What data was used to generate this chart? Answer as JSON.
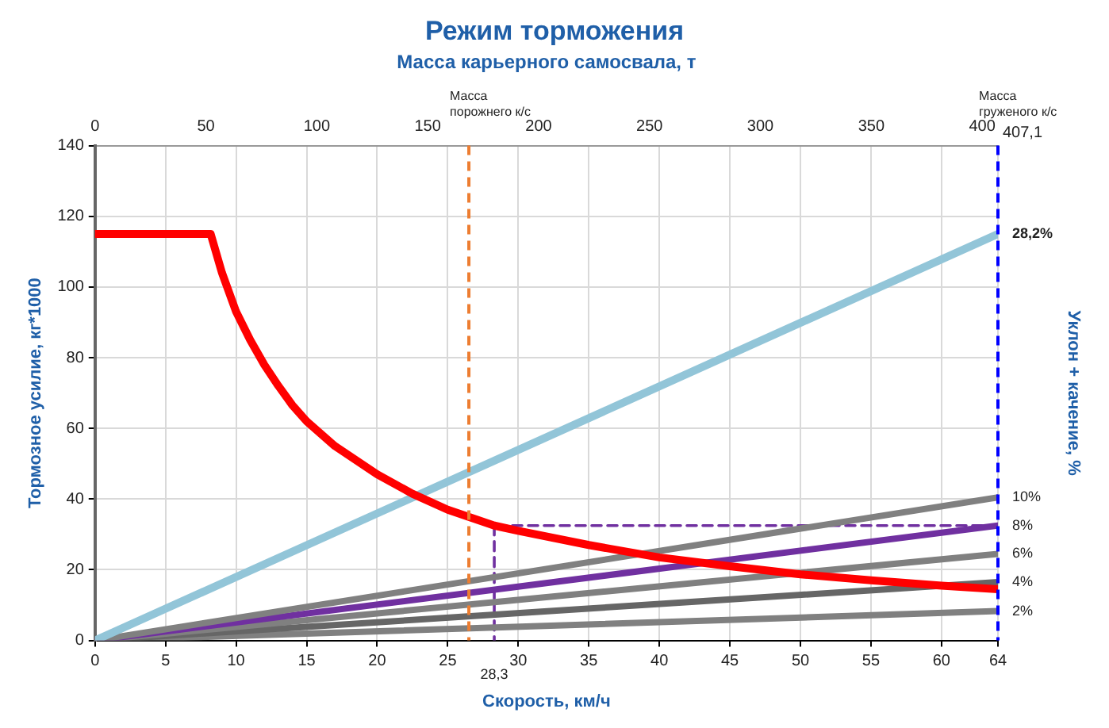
{
  "chart_data": {
    "type": "line",
    "title": "Режим торможения",
    "x2label": "Масса карьерного самосвала, т",
    "xlabel": "Скорость, км/ч",
    "ylabel": "Тормозное усилие, кг*1000",
    "y2label": "Уклон + качение, %",
    "xlim": [
      0,
      64
    ],
    "xticks": [
      0,
      5,
      10,
      15,
      20,
      25,
      30,
      35,
      40,
      45,
      50,
      55,
      60,
      64
    ],
    "x2lim": [
      0,
      407.1
    ],
    "x2ticks": [
      0,
      50,
      100,
      150,
      200,
      250,
      300,
      350,
      400
    ],
    "ylim": [
      0,
      140
    ],
    "yticks": [
      0,
      20,
      40,
      60,
      80,
      100,
      120,
      140
    ],
    "grid": true,
    "legend": false,
    "marker": "none",
    "series": [
      {
        "color": "#ff0000",
        "x": [
          0,
          8.2,
          9,
          10,
          11,
          12,
          13,
          14,
          15,
          17,
          20,
          22.5,
          25,
          28.3,
          30,
          35,
          40,
          45,
          50,
          55,
          60,
          64
        ],
        "values": [
          115,
          115,
          104,
          93,
          85,
          78,
          72,
          66.5,
          62,
          55,
          47,
          41.5,
          37,
          32.5,
          31,
          27,
          23.5,
          21,
          18.7,
          17,
          15.5,
          14.5
        ]
      },
      {
        "name": "28,2%",
        "color": "#92c5d8",
        "x": [
          0,
          64
        ],
        "values": [
          0,
          115
        ]
      },
      {
        "name": "10%",
        "color": "#808080",
        "x": [
          0,
          64
        ],
        "values": [
          0,
          40.5
        ]
      },
      {
        "name": "8%",
        "color": "#7030a0",
        "x": [
          0,
          64
        ],
        "values": [
          0,
          32.5
        ]
      },
      {
        "name": "6%",
        "color": "#808080",
        "x": [
          0,
          64
        ],
        "values": [
          0,
          24.5
        ]
      },
      {
        "name": "4%",
        "color": "#666666",
        "x": [
          0,
          64
        ],
        "values": [
          0,
          16.5
        ]
      },
      {
        "name": "2%",
        "color": "#808080",
        "x": [
          0,
          64
        ],
        "values": [
          0,
          8.3
        ]
      },
      {
        "color": "#7030a0",
        "line_style": "dashed",
        "x": [
          64,
          28.3
        ],
        "values": [
          32.5,
          32.5
        ]
      },
      {
        "color": "#7030a0",
        "line_style": "dashed",
        "x": [
          28.3,
          28.3
        ],
        "values": [
          32.5,
          0
        ]
      }
    ],
    "ref_lines": [
      {
        "axis": "x",
        "value": 26.5,
        "label": "Масса порожнего к/с",
        "color": "#ed7d31",
        "line_style": "dashed"
      },
      {
        "axis": "x",
        "value": 64,
        "label": "Масса груженого к/с",
        "color": "#0000ff",
        "line_style": "dashed"
      }
    ],
    "annotations": [
      {
        "text": "407,1",
        "x": 64,
        "y": 140
      },
      {
        "text": "28,3",
        "x": 28.3,
        "y": 0
      }
    ]
  }
}
